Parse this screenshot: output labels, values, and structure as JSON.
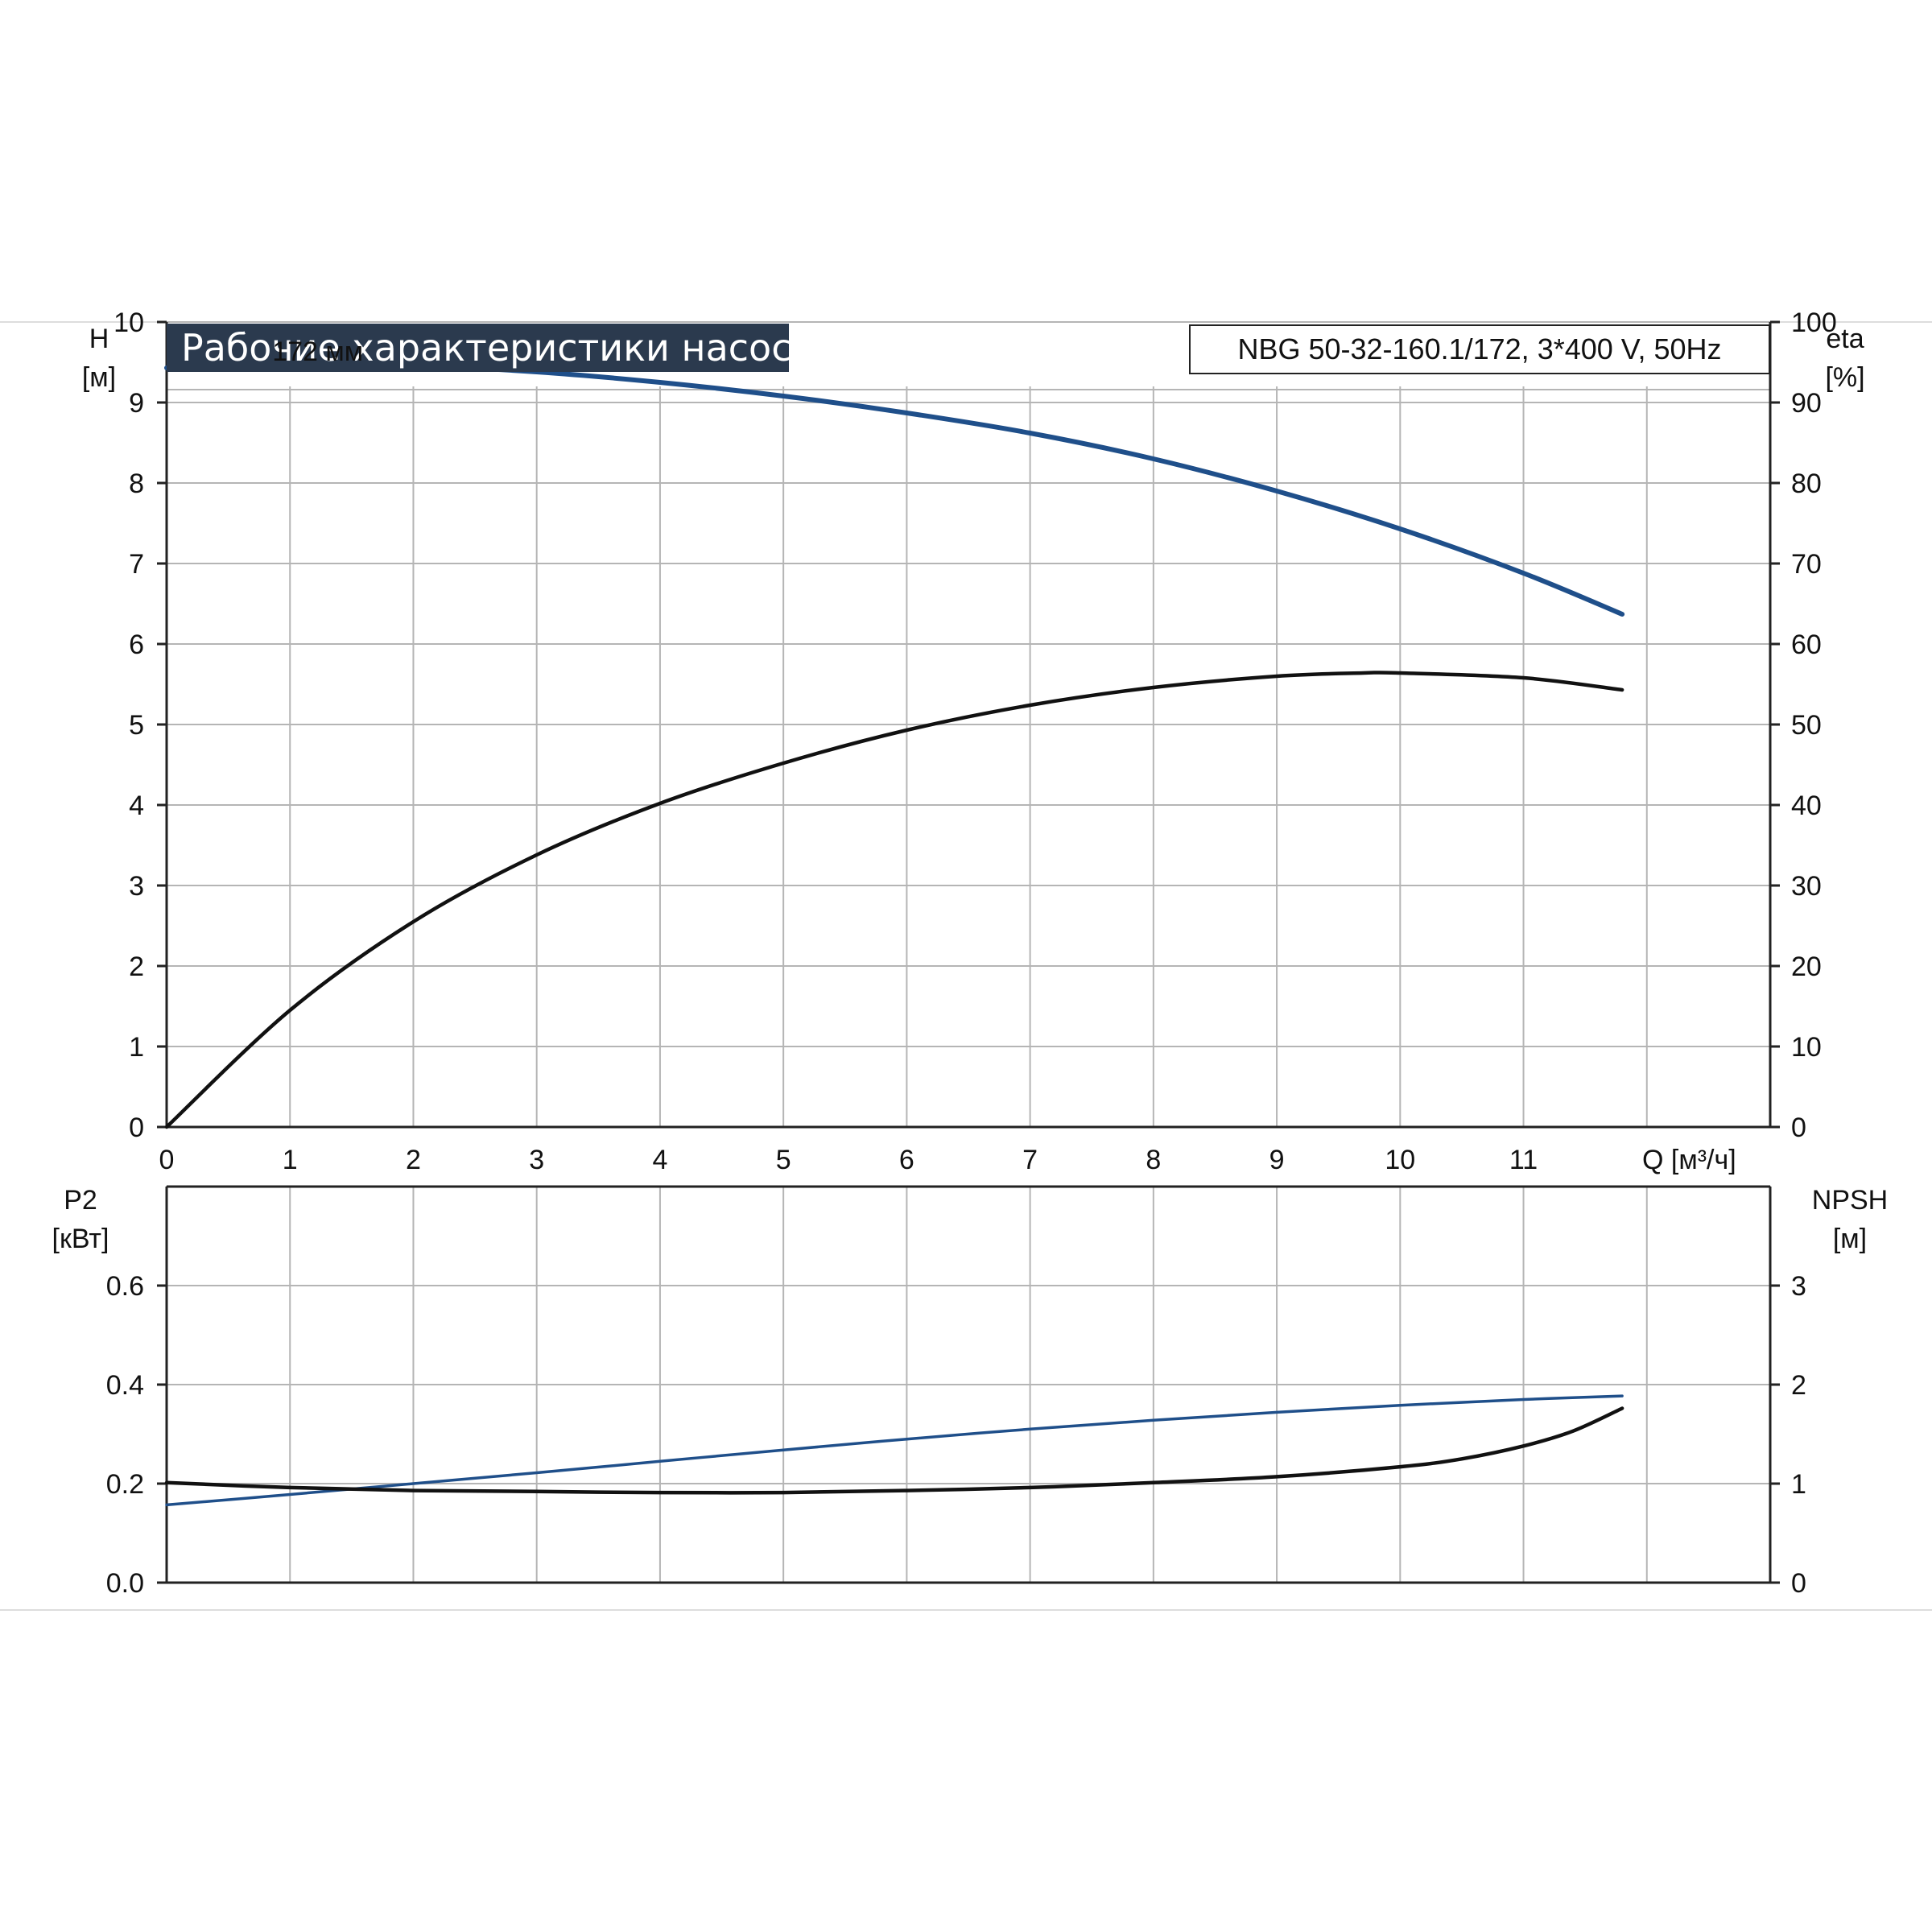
{
  "header": {
    "title": "Рабочие характеристики насоса",
    "model": "NBG 50-32-160.1/172, 3*400 V, 50Hz"
  },
  "colors": {
    "blue": "#1f4f8a",
    "black": "#111111",
    "grid": "#b5b5b5",
    "title_bg": "#2b3a4e"
  },
  "chart_data": [
    {
      "type": "line",
      "panel": "top",
      "x_axis": {
        "label": "Q [м³/ч]",
        "range": [
          0,
          13
        ],
        "ticks": [
          0,
          1,
          2,
          3,
          4,
          5,
          6,
          7,
          8,
          9,
          10,
          11
        ]
      },
      "y_left": {
        "label": "H",
        "unit": "[м]",
        "range": [
          0,
          10
        ],
        "ticks": [
          0,
          1,
          2,
          3,
          4,
          5,
          6,
          7,
          8,
          9,
          10
        ]
      },
      "y_right": {
        "label": "eta",
        "unit": "[%]",
        "range": [
          0,
          100
        ],
        "ticks": [
          0,
          10,
          20,
          30,
          40,
          50,
          60,
          70,
          80,
          90,
          100
        ]
      },
      "annotations": [
        {
          "text": "172 мм",
          "x": 1.15,
          "y": 9.6
        }
      ],
      "grid": true,
      "series": [
        {
          "name": "H",
          "axis": "left",
          "color": "#1f4f8a",
          "x": [
            0,
            1,
            2,
            3,
            4,
            5,
            6,
            7,
            8,
            9,
            10,
            11,
            11.8
          ],
          "y": [
            9.43,
            9.5,
            9.46,
            9.38,
            9.25,
            9.08,
            8.87,
            8.62,
            8.3,
            7.9,
            7.43,
            6.88,
            6.37
          ]
        },
        {
          "name": "eta",
          "axis": "right",
          "color": "#111111",
          "x": [
            0,
            1,
            2,
            3,
            4,
            5,
            6,
            7,
            8,
            9,
            9.7,
            10,
            11,
            11.8
          ],
          "y": [
            0,
            14.5,
            25.5,
            33.8,
            40.2,
            45.2,
            49.3,
            52.4,
            54.6,
            56.0,
            56.4,
            56.4,
            55.8,
            54.3
          ]
        }
      ]
    },
    {
      "type": "line",
      "panel": "bottom",
      "x_axis": {
        "range": [
          0,
          13
        ],
        "ticks": [
          0,
          1,
          2,
          3,
          4,
          5,
          6,
          7,
          8,
          9,
          10,
          11
        ]
      },
      "y_left": {
        "label": "P2",
        "unit": "[кВт]",
        "range": [
          0,
          0.8
        ],
        "ticks": [
          "0.0",
          "0.2",
          "0.4",
          "0.6"
        ]
      },
      "y_right": {
        "label": "NPSH",
        "unit": "[м]",
        "range": [
          0,
          4
        ],
        "ticks": [
          "0",
          "1",
          "2",
          "3"
        ]
      },
      "grid": true,
      "series": [
        {
          "name": "P2",
          "axis": "left",
          "color": "#1f4f8a",
          "x": [
            0,
            1,
            2,
            3,
            4,
            5,
            6,
            7,
            8,
            9,
            10,
            11,
            11.8
          ],
          "y": [
            0.157,
            0.178,
            0.2,
            0.222,
            0.245,
            0.268,
            0.29,
            0.31,
            0.328,
            0.344,
            0.358,
            0.37,
            0.377
          ]
        },
        {
          "name": "NPSH",
          "axis": "right",
          "color": "#111111",
          "x": [
            0,
            1,
            2,
            3,
            4,
            5,
            6,
            7,
            8,
            9,
            10,
            10.5,
            11,
            11.4,
            11.8
          ],
          "y": [
            1.01,
            0.96,
            0.93,
            0.92,
            0.91,
            0.91,
            0.93,
            0.96,
            1.01,
            1.07,
            1.17,
            1.25,
            1.38,
            1.53,
            1.76
          ]
        }
      ]
    }
  ]
}
